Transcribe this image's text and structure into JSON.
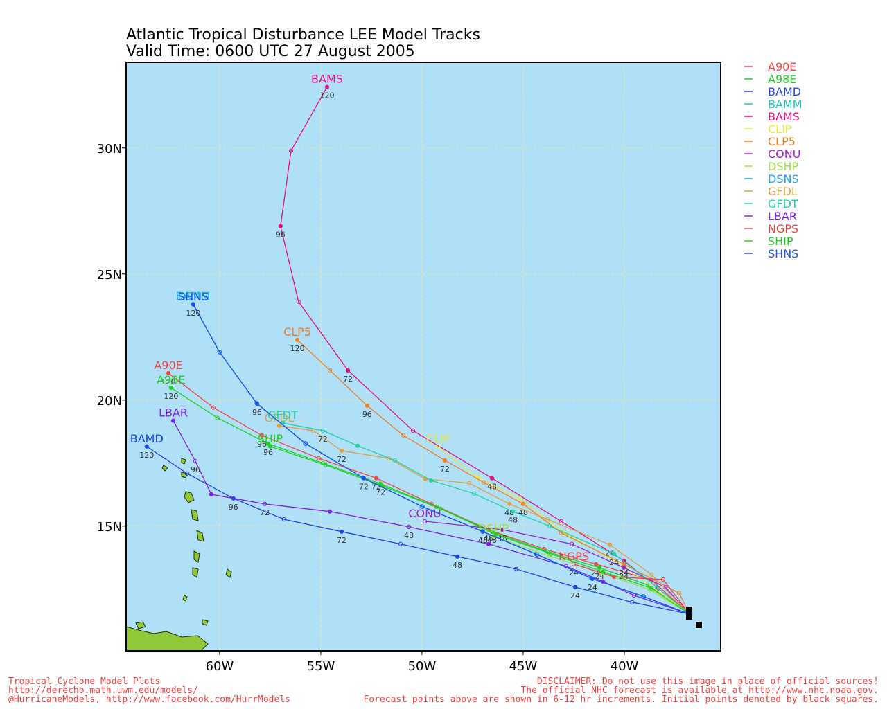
{
  "chart_data": {
    "type": "line",
    "title": "Atlantic Tropical Disturbance LEE Model Tracks",
    "subtitle": "Valid Time: 0600 UTC 27 August 2005",
    "xlim": [
      -64.62,
      -35.24
    ],
    "ylim": [
      10.05,
      33.4
    ],
    "xticks": [
      {
        "value": -60,
        "label": "60W"
      },
      {
        "value": -55,
        "label": "55W"
      },
      {
        "value": -50,
        "label": "50W"
      },
      {
        "value": -45,
        "label": "45W"
      },
      {
        "value": -40,
        "label": "40W"
      }
    ],
    "yticks": [
      {
        "value": 15,
        "label": "15N"
      },
      {
        "value": 20,
        "label": "20N"
      },
      {
        "value": 25,
        "label": "25N"
      },
      {
        "value": 30,
        "label": "30N"
      }
    ],
    "grid": true,
    "series": [
      {
        "name": "A90E",
        "color": "#f04848",
        "x": [
          -36.78,
          -38.66,
          -41.4,
          -43.97,
          -46.71,
          -49.52,
          -52.26,
          -55.1,
          -57.91,
          -60.31,
          -62.53
        ],
        "values": [
          11.51,
          12.86,
          13.49,
          14.09,
          14.86,
          15.88,
          16.9,
          17.69,
          18.6,
          19.7,
          21.07
        ],
        "hours": [
          null,
          null,
          24,
          null,
          48,
          null,
          72,
          null,
          96,
          null,
          120
        ]
      },
      {
        "name": "A98E",
        "color": "#20d020",
        "x": [
          -36.78,
          -38.84,
          -41.23,
          -43.8,
          -46.54,
          -49.28,
          -52.05,
          -54.9,
          -57.6,
          -60.1,
          -62.4
        ],
        "values": [
          11.51,
          12.66,
          13.35,
          13.98,
          14.78,
          15.77,
          16.68,
          17.5,
          18.27,
          19.29,
          20.49
        ],
        "hours": [
          null,
          null,
          24,
          null,
          48,
          null,
          72,
          null,
          96,
          null,
          120
        ]
      },
      {
        "name": "BAMD",
        "color": "#2040e8",
        "x": [
          -36.78,
          -39.62,
          -42.43,
          -45.34,
          -48.25,
          -51.06,
          -53.97,
          -56.82,
          -59.32,
          -61.61,
          -63.6
        ],
        "values": [
          11.51,
          11.98,
          12.58,
          13.3,
          13.79,
          14.29,
          14.78,
          15.27,
          16.1,
          17.09,
          18.16
        ],
        "hours": [
          null,
          null,
          24,
          null,
          48,
          null,
          72,
          null,
          96,
          null,
          120
        ]
      },
      {
        "name": "BAMM",
        "color": "#20c0c0",
        "x": [
          -36.78,
          -39.1,
          -41.65,
          -44.38,
          -47.05,
          -50.02,
          -52.92,
          -55.78,
          -58.17,
          -60.02,
          -61.32
        ],
        "values": [
          11.51,
          12.22,
          12.94,
          13.9,
          14.8,
          15.79,
          16.92,
          18.29,
          19.88,
          21.92,
          23.81
        ]
      },
      {
        "name": "BAMS",
        "color": "#e01080",
        "x": [
          -36.78,
          -38.32,
          -40.03,
          -43.12,
          -46.54,
          -50.45,
          -53.66,
          -56.1,
          -56.99,
          -56.47,
          -54.69
        ],
        "values": [
          11.51,
          12.53,
          13.63,
          15.19,
          16.9,
          18.79,
          21.18,
          23.9,
          26.9,
          29.89,
          32.42
        ],
        "hours": [
          null,
          null,
          null,
          null,
          48,
          null,
          72,
          null,
          96,
          null,
          120
        ]
      },
      {
        "name": "CLIP",
        "color": "#e8e840",
        "x": [
          -36.78,
          -40.03,
          -42.95,
          -45.17,
          -47.23,
          -49.21
        ],
        "values": [
          11.51,
          13.41,
          14.73,
          16.1,
          16.92,
          18.16
        ]
      },
      {
        "name": "CLP5",
        "color": "#f08020",
        "x": [
          -36.78,
          -37.29,
          -40.03,
          -43.12,
          -45.0,
          -46.95,
          -48.87,
          -50.92,
          -52.71,
          -54.55,
          -56.16
        ],
        "values": [
          11.51,
          12.34,
          13.49,
          14.73,
          15.88,
          16.73,
          17.61,
          18.6,
          19.78,
          21.18,
          22.39
        ],
        "hours": [
          null,
          null,
          24,
          null,
          48,
          null,
          72,
          null,
          96,
          null,
          120
        ]
      },
      {
        "name": "CONU",
        "color": "#a020d0",
        "x": [
          -36.78,
          -37.98,
          -40.03,
          -42.6,
          -46.03,
          -49.86
        ],
        "values": [
          11.51,
          12.58,
          13.35,
          14.29,
          14.86,
          15.19
        ],
        "hours": [
          null,
          null,
          24,
          null,
          48,
          null
        ]
      },
      {
        "name": "DSHP",
        "color": "#a0e040",
        "x": [
          -36.78,
          -38.73,
          -41.13,
          -43.73,
          -46.47
        ],
        "values": [
          11.51,
          12.47,
          13.14,
          13.82,
          14.59
        ]
      },
      {
        "name": "DSNS",
        "color": "#20a0f0",
        "x": [
          -36.78,
          -39.06,
          -41.6,
          -44.34,
          -47.01,
          -49.99,
          -52.9,
          -55.77,
          -58.16,
          -60.01,
          -61.31
        ],
        "values": [
          11.51,
          12.21,
          12.92,
          13.88,
          14.79,
          15.78,
          16.91,
          18.28,
          19.87,
          21.91,
          23.8
        ]
      },
      {
        "name": "GFDL",
        "color": "#e0a040",
        "x": [
          -36.78,
          -38.66,
          -40.72,
          -43.8,
          -45.68,
          -47.67,
          -49.83,
          -51.64,
          -53.97,
          -55.38,
          -57.05
        ],
        "values": [
          11.51,
          13.08,
          14.26,
          15.27,
          15.88,
          16.7,
          16.87,
          17.69,
          17.99,
          18.79,
          18.98
        ],
        "hours": [
          null,
          null,
          24,
          null,
          48,
          null,
          null,
          null,
          72,
          null,
          null
        ]
      },
      {
        "name": "GFDT",
        "color": "#20d0a0",
        "x": [
          -36.78,
          -38.39,
          -40.51,
          -43.7,
          -45.51,
          -47.43,
          -49.55,
          -51.34,
          -53.18,
          -54.9,
          -56.88
        ],
        "values": [
          11.51,
          12.58,
          13.9,
          15.0,
          15.58,
          16.29,
          16.81,
          17.61,
          18.19,
          18.79,
          19.09
        ],
        "hours": [
          null,
          null,
          24,
          null,
          48,
          null,
          null,
          null,
          null,
          72,
          null
        ]
      },
      {
        "name": "LBAR",
        "color": "#8020e0",
        "x": [
          -36.78,
          -39.52,
          -41.06,
          -42.88,
          -46.71,
          -50.65,
          -54.55,
          -57.77,
          -60.41,
          -61.2,
          -62.29
        ],
        "values": [
          11.51,
          12.25,
          12.8,
          13.41,
          14.29,
          14.97,
          15.58,
          15.88,
          16.26,
          17.58,
          19.18
        ],
        "hours": [
          null,
          null,
          null,
          null,
          null,
          48,
          null,
          72,
          null,
          96,
          null
        ]
      },
      {
        "name": "NGPS",
        "color": "#f04040",
        "x": [
          -36.78,
          -38.08,
          -40.51,
          -42.5
        ],
        "values": [
          11.51,
          12.88,
          12.99,
          13.49
        ],
        "hours": [
          null,
          null,
          null,
          24
        ]
      },
      {
        "name": "SHIP",
        "color": "#20d020",
        "x": [
          -36.78,
          -38.66,
          -41.06,
          -43.63,
          -46.34,
          -49.08,
          -51.95,
          -54.76,
          -57.5
        ],
        "values": [
          11.51,
          12.53,
          13.19,
          13.9,
          14.67,
          15.69,
          16.59,
          17.42,
          18.16
        ]
      },
      {
        "name": "SHNS",
        "color": "#2050f0",
        "x": [
          -36.78,
          -39.04,
          -41.58,
          -44.32,
          -46.99,
          -49.97,
          -52.88,
          -55.75,
          -58.15,
          -60.0,
          -61.3
        ],
        "values": [
          11.51,
          12.2,
          12.91,
          13.87,
          14.78,
          15.77,
          16.9,
          18.27,
          19.86,
          21.9,
          23.79
        ],
        "hours": [
          null,
          null,
          24,
          null,
          48,
          null,
          72,
          null,
          96,
          null,
          120
        ]
      }
    ],
    "footer_left": [
      "Tropical Cyclone Model Plots",
      "http://derecho.math.uwm.edu/models/",
      "@HurricaneModels, http://www.facebook.com/HurrModels"
    ],
    "footer_right": [
      "DISCLAIMER: Do not use this image in place of official sources!",
      "The official NHC forecast is available at http://www.nhc.noaa.gov.",
      "Forecast points above are shown in 6-12 hr increments. Initial points denoted by black squares."
    ]
  }
}
